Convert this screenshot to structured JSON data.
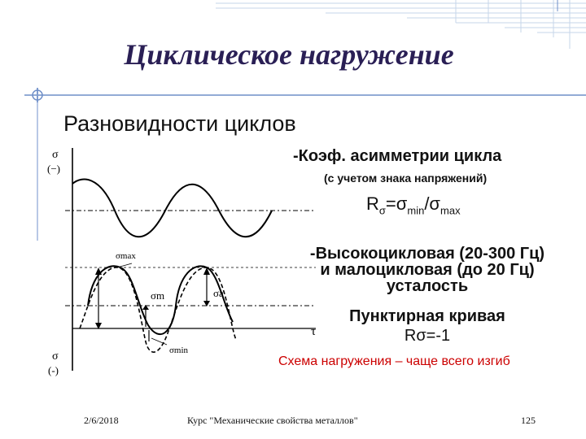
{
  "slide": {
    "title": "Циклическое нагружение",
    "subtitle": "Разновидности циклов",
    "coef_title": "-Коэф. асимметрии цикла",
    "coef_note": "(с учетом знака напряжений)",
    "formula": {
      "R": "R",
      "r_sub": "σ",
      "eq": "=σ",
      "min_sub": "min",
      "slash": "/σ",
      "max_sub": "max"
    },
    "high_low_line1": "-Высокоцикловая (20-300 Гц)",
    "high_low_line2": "и малоцикловая (до 20 Гц)",
    "high_low_line3": "усталость",
    "dashed_curve": "Пунктирная кривая",
    "r_value": "Rσ=-1",
    "scheme": "Схема нагружения – чаще всего изгиб"
  },
  "figure": {
    "sigma_top": "σ",
    "minus_top": "(−)",
    "sigma_bottom": "σ",
    "minus_bottom": "(-)",
    "sigma_max": "σmax",
    "sigma_m": "σm",
    "sigma_a": "σa",
    "sigma_min": "σmin",
    "tau": "τ"
  },
  "footer": {
    "date": "2/6/2018",
    "course": "Курс \"Механические свойства металлов\"",
    "page": "125"
  },
  "colors": {
    "title": "#2a1f55",
    "scheme": "#cc0000",
    "deco": "#6f8fc8"
  }
}
